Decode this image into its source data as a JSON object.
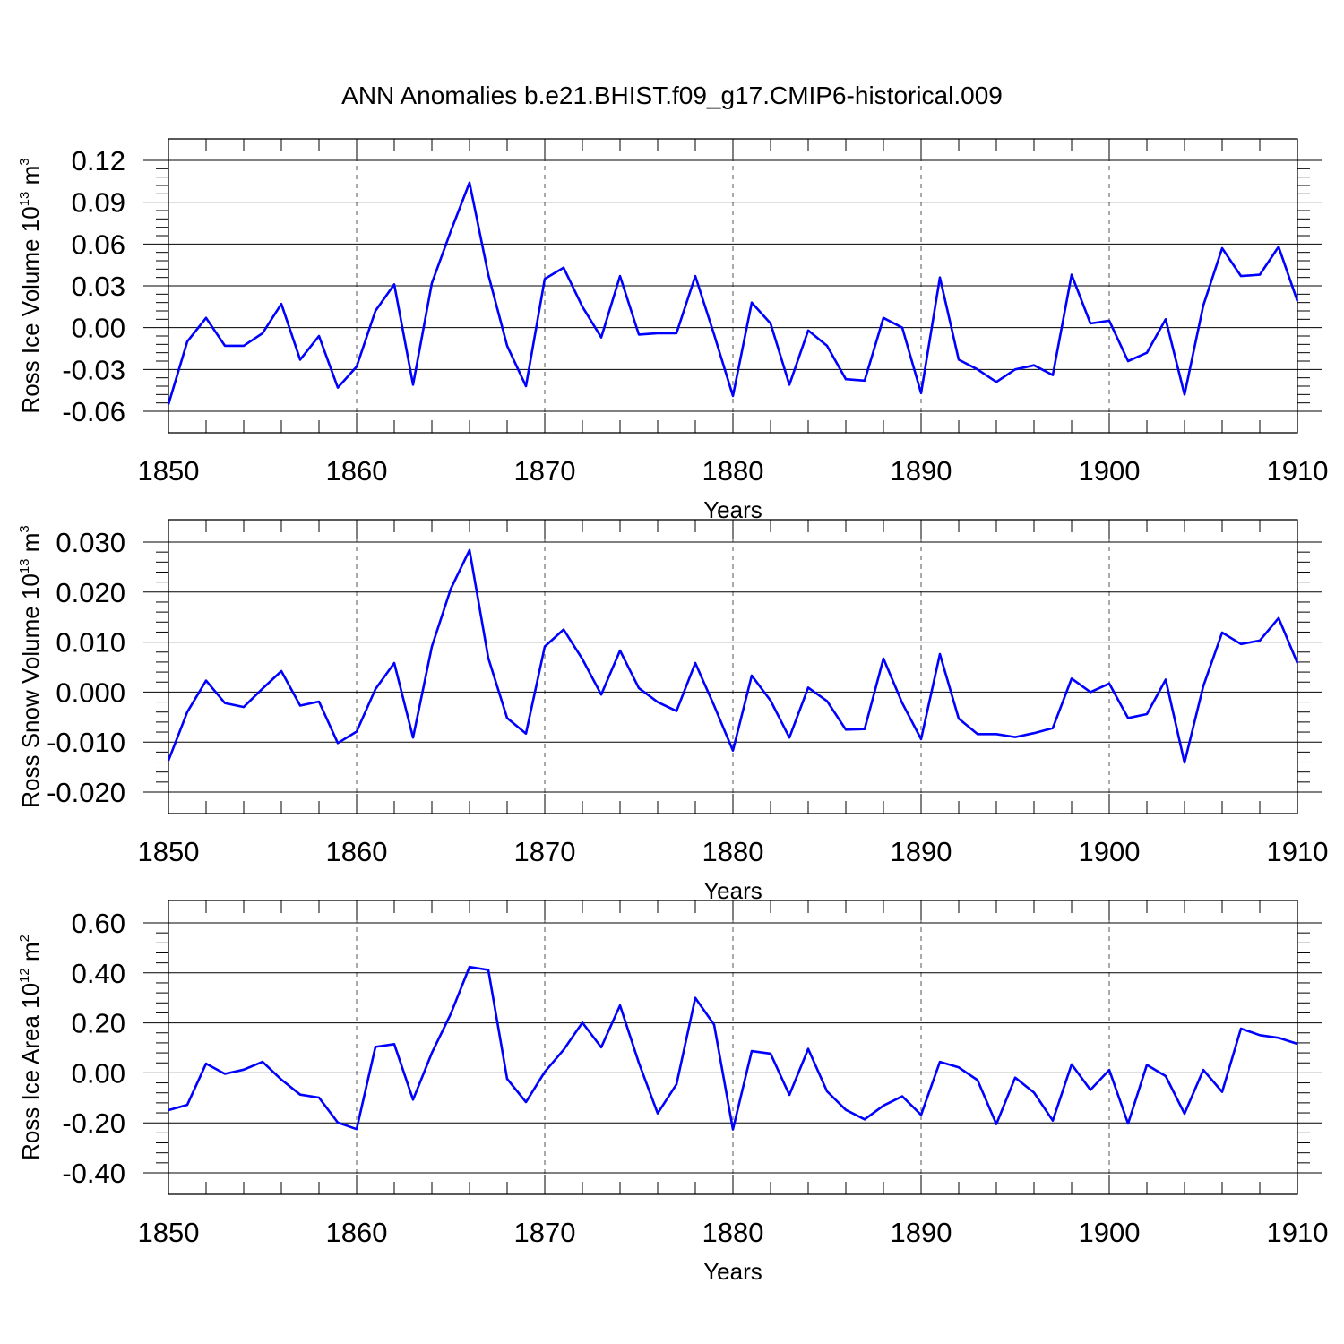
{
  "title": "ANN Anomalies b.e21.BHIST.f09_g17.CMIP6-historical.009",
  "line_color": "#0000ff",
  "chart_data": [
    {
      "type": "line",
      "title": "",
      "xlabel": "Years",
      "ylabel_main": "Ross Ice Volume 10",
      "ylabel_exp": "13",
      "ylabel_unit": " m",
      "ylabel_unit_exp": "3",
      "xlim": [
        1850,
        1910
      ],
      "ylim": [
        -0.06,
        0.12
      ],
      "xticks": [
        1850,
        1860,
        1870,
        1880,
        1890,
        1900,
        1910
      ],
      "xtick_labels": [
        "1850",
        "1860",
        "1870",
        "1880",
        "1890",
        "1900",
        "1910"
      ],
      "yticks": [
        -0.06,
        -0.03,
        0.0,
        0.03,
        0.06,
        0.09,
        0.12
      ],
      "ytick_labels": [
        "-0.06",
        "-0.03",
        "0.00",
        "0.03",
        "0.06",
        "0.09",
        "0.12"
      ],
      "grid": "dashed vertical lines at major x ticks",
      "series": [
        {
          "x": [
            1850,
            1851,
            1852,
            1853,
            1854,
            1855,
            1856,
            1857,
            1858,
            1859,
            1860,
            1861,
            1862,
            1863,
            1864,
            1865,
            1866,
            1867,
            1868,
            1869,
            1870,
            1871,
            1872,
            1873,
            1874,
            1875,
            1876,
            1877,
            1878,
            1879,
            1880,
            1881,
            1882,
            1883,
            1884,
            1885,
            1886,
            1887,
            1888,
            1889,
            1890,
            1891,
            1892,
            1893,
            1894,
            1895,
            1896,
            1897,
            1898,
            1899,
            1900,
            1901,
            1902,
            1903,
            1904,
            1905,
            1906,
            1907,
            1908,
            1909,
            1910
          ],
          "values": [
            -0.055,
            -0.01,
            0.007,
            -0.013,
            -0.013,
            -0.004,
            0.017,
            -0.023,
            -0.006,
            -0.043,
            -0.028,
            0.012,
            0.031,
            -0.041,
            0.032,
            0.069,
            0.104,
            0.038,
            -0.013,
            -0.042,
            0.035,
            0.043,
            0.015,
            -0.007,
            0.037,
            -0.005,
            -0.004,
            -0.004,
            0.037,
            -0.005,
            -0.049,
            0.018,
            0.003,
            -0.041,
            -0.002,
            -0.013,
            -0.037,
            -0.038,
            0.007,
            0.0,
            -0.047,
            0.036,
            -0.023,
            -0.03,
            -0.039,
            -0.03,
            -0.027,
            -0.034,
            0.038,
            0.003,
            0.005,
            -0.024,
            -0.018,
            0.006,
            -0.048,
            0.016,
            0.057,
            0.037,
            0.038,
            0.058,
            0.019
          ]
        }
      ]
    },
    {
      "type": "line",
      "title": "",
      "xlabel": "Years",
      "ylabel_main": "Ross Snow Volume 10",
      "ylabel_exp": "13",
      "ylabel_unit": " m",
      "ylabel_unit_exp": "3",
      "xlim": [
        1850,
        1910
      ],
      "ylim": [
        -0.02,
        0.03
      ],
      "xticks": [
        1850,
        1860,
        1870,
        1880,
        1890,
        1900,
        1910
      ],
      "xtick_labels": [
        "1850",
        "1860",
        "1870",
        "1880",
        "1890",
        "1900",
        "1910"
      ],
      "yticks": [
        -0.02,
        -0.01,
        0.0,
        0.01,
        0.02,
        0.03
      ],
      "ytick_labels": [
        "-0.020",
        "-0.010",
        "0.000",
        "0.010",
        "0.020",
        "0.030"
      ],
      "grid": "dashed vertical lines at major x ticks",
      "series": [
        {
          "x": [
            1850,
            1851,
            1852,
            1853,
            1854,
            1855,
            1856,
            1857,
            1858,
            1859,
            1860,
            1861,
            1862,
            1863,
            1864,
            1865,
            1866,
            1867,
            1868,
            1869,
            1870,
            1871,
            1872,
            1873,
            1874,
            1875,
            1876,
            1877,
            1878,
            1879,
            1880,
            1881,
            1882,
            1883,
            1884,
            1885,
            1886,
            1887,
            1888,
            1889,
            1890,
            1891,
            1892,
            1893,
            1894,
            1895,
            1896,
            1897,
            1898,
            1899,
            1900,
            1901,
            1902,
            1903,
            1904,
            1905,
            1906,
            1907,
            1908,
            1909,
            1910
          ],
          "values": [
            -0.0137,
            -0.004,
            0.0023,
            -0.0022,
            -0.003,
            0.0007,
            0.0042,
            -0.0027,
            -0.0019,
            -0.0102,
            -0.0079,
            0.0006,
            0.0058,
            -0.0091,
            0.0091,
            0.0206,
            0.0284,
            0.0068,
            -0.0052,
            -0.0083,
            0.0091,
            0.0125,
            0.0066,
            -0.0005,
            0.0083,
            0.0008,
            -0.002,
            -0.0038,
            0.0058,
            -0.0027,
            -0.0117,
            0.0033,
            -0.0017,
            -0.0091,
            0.0009,
            -0.0018,
            -0.0075,
            -0.0074,
            0.0067,
            -0.0022,
            -0.0094,
            0.0076,
            -0.0053,
            -0.0084,
            -0.0084,
            -0.009,
            -0.0082,
            -0.0072,
            0.0027,
            0.0,
            0.0017,
            -0.0052,
            -0.0044,
            0.0025,
            -0.0141,
            0.0012,
            0.0119,
            0.0096,
            0.0103,
            0.0148,
            0.0058
          ]
        }
      ]
    },
    {
      "type": "line",
      "title": "",
      "xlabel": "Years",
      "ylabel_main": "Ross Ice Area 10",
      "ylabel_exp": "12",
      "ylabel_unit": " m",
      "ylabel_unit_exp": "2",
      "xlim": [
        1850,
        1910
      ],
      "ylim": [
        -0.4,
        0.6
      ],
      "xticks": [
        1850,
        1860,
        1870,
        1880,
        1890,
        1900,
        1910
      ],
      "xtick_labels": [
        "1850",
        "1860",
        "1870",
        "1880",
        "1890",
        "1900",
        "1910"
      ],
      "yticks": [
        -0.4,
        -0.2,
        0.0,
        0.2,
        0.4,
        0.6
      ],
      "ytick_labels": [
        "-0.40",
        "-0.20",
        "0.00",
        "0.20",
        "0.40",
        "0.60"
      ],
      "grid": "dashed vertical lines at major x ticks",
      "series": [
        {
          "x": [
            1850,
            1851,
            1852,
            1853,
            1854,
            1855,
            1856,
            1857,
            1858,
            1859,
            1860,
            1861,
            1862,
            1863,
            1864,
            1865,
            1866,
            1867,
            1868,
            1869,
            1870,
            1871,
            1872,
            1873,
            1874,
            1875,
            1876,
            1877,
            1878,
            1879,
            1880,
            1881,
            1882,
            1883,
            1884,
            1885,
            1886,
            1887,
            1888,
            1889,
            1890,
            1891,
            1892,
            1893,
            1894,
            1895,
            1896,
            1897,
            1898,
            1899,
            1900,
            1901,
            1902,
            1903,
            1904,
            1905,
            1906,
            1907,
            1908,
            1909,
            1910
          ],
          "values": [
            -0.149,
            -0.128,
            0.037,
            -0.004,
            0.013,
            0.044,
            -0.027,
            -0.087,
            -0.099,
            -0.199,
            -0.225,
            0.104,
            0.115,
            -0.107,
            0.08,
            0.235,
            0.424,
            0.412,
            -0.024,
            -0.117,
            0.004,
            0.092,
            0.201,
            0.102,
            0.27,
            0.04,
            -0.162,
            -0.046,
            0.3,
            0.193,
            -0.226,
            0.087,
            0.077,
            -0.088,
            0.096,
            -0.074,
            -0.148,
            -0.186,
            -0.131,
            -0.094,
            -0.168,
            0.044,
            0.022,
            -0.029,
            -0.205,
            -0.019,
            -0.079,
            -0.191,
            0.034,
            -0.068,
            0.012,
            -0.203,
            0.032,
            -0.013,
            -0.163,
            0.012,
            -0.076,
            0.177,
            0.151,
            0.14,
            0.116
          ]
        }
      ]
    }
  ]
}
